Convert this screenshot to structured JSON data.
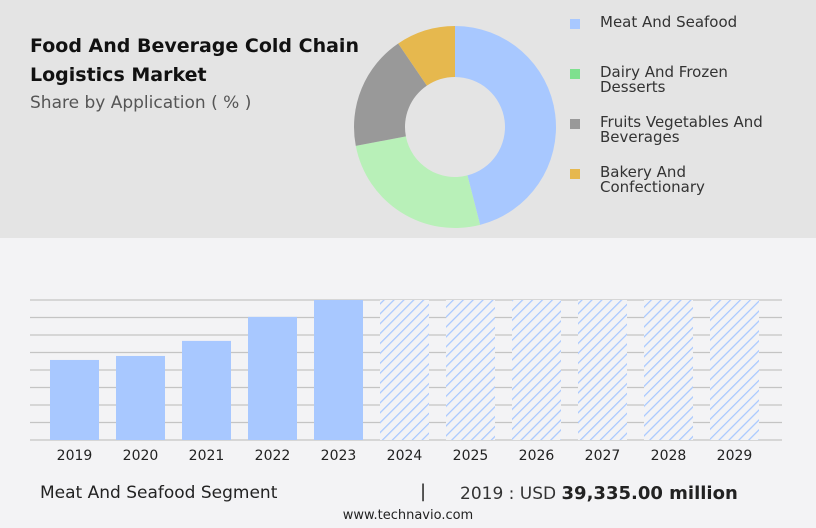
{
  "title": "Food And Beverage Cold Chain Logistics Market",
  "subtitle": "Share by Application ( % )",
  "chart_data": [
    {
      "type": "pie",
      "style": "donut",
      "categories": [
        "Meat And Seafood",
        "Dairy And Frozen Desserts",
        "Fruits Vegetables And Beverages",
        "Bakery And Confectionary"
      ],
      "values": [
        46,
        26,
        18.5,
        9.5
      ],
      "colors": [
        "#a8c8ff",
        "#b8f0b8",
        "#999999",
        "#e6b84e"
      ],
      "legend_colors": [
        "#a8c8ff",
        "#7ee08e",
        "#999999",
        "#e6b84e"
      ],
      "legend": "right"
    },
    {
      "type": "bar",
      "categories": [
        "2019",
        "2020",
        "2021",
        "2022",
        "2023",
        "2024",
        "2025",
        "2026",
        "2027",
        "2028",
        "2029"
      ],
      "values": [
        39335,
        41300,
        48700,
        60500,
        68800,
        null,
        null,
        null,
        null,
        null,
        null
      ],
      "forecast": [
        false,
        false,
        false,
        false,
        false,
        true,
        true,
        true,
        true,
        true,
        true
      ],
      "ylim": [
        0,
        68800
      ],
      "grid": true,
      "color": "#a8c8ff"
    }
  ],
  "footer": {
    "segment": "Meat And Seafood Segment",
    "separator": "|",
    "year_label": "2019 : USD",
    "value": "39,335.00 million"
  },
  "url": "www.technavio.com"
}
